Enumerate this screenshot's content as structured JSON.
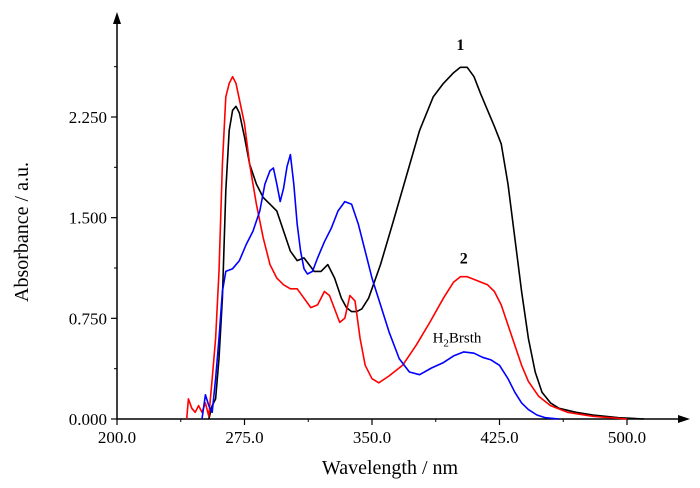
{
  "chart_data": {
    "type": "line",
    "xlabel": "Wavelength / nm",
    "ylabel": "Absorbance / a.u.",
    "xlim": [
      200,
      545
    ],
    "ylim": [
      0,
      3.05
    ],
    "x_ticks": [
      200,
      275,
      350,
      425,
      500
    ],
    "x_tick_labels": [
      "200.0",
      "275.0",
      "350.0",
      "425.0",
      "500.0"
    ],
    "y_ticks": [
      0,
      0.75,
      1.5,
      2.25
    ],
    "y_tick_labels": [
      "0.000",
      "0.750",
      "1.500",
      "2.250"
    ],
    "grid": false,
    "series": [
      {
        "name": "1",
        "color": "#000000",
        "points": [
          [
            254,
            0.0
          ],
          [
            256,
            0.1
          ],
          [
            258,
            0.15
          ],
          [
            260,
            0.45
          ],
          [
            262,
            0.9
          ],
          [
            264,
            1.7
          ],
          [
            266,
            2.15
          ],
          [
            268,
            2.3
          ],
          [
            270,
            2.33
          ],
          [
            272,
            2.28
          ],
          [
            275,
            2.1
          ],
          [
            278,
            1.9
          ],
          [
            282,
            1.75
          ],
          [
            286,
            1.65
          ],
          [
            290,
            1.6
          ],
          [
            294,
            1.55
          ],
          [
            298,
            1.4
          ],
          [
            302,
            1.25
          ],
          [
            306,
            1.18
          ],
          [
            310,
            1.2
          ],
          [
            313,
            1.15
          ],
          [
            316,
            1.1
          ],
          [
            320,
            1.1
          ],
          [
            324,
            1.15
          ],
          [
            328,
            1.05
          ],
          [
            332,
            0.9
          ],
          [
            335,
            0.83
          ],
          [
            338,
            0.8
          ],
          [
            341,
            0.8
          ],
          [
            344,
            0.82
          ],
          [
            348,
            0.9
          ],
          [
            355,
            1.15
          ],
          [
            362,
            1.45
          ],
          [
            370,
            1.8
          ],
          [
            378,
            2.15
          ],
          [
            386,
            2.4
          ],
          [
            392,
            2.5
          ],
          [
            398,
            2.58
          ],
          [
            402,
            2.62
          ],
          [
            406,
            2.62
          ],
          [
            410,
            2.55
          ],
          [
            414,
            2.42
          ],
          [
            418,
            2.3
          ],
          [
            422,
            2.18
          ],
          [
            426,
            2.05
          ],
          [
            430,
            1.75
          ],
          [
            434,
            1.35
          ],
          [
            438,
            0.95
          ],
          [
            442,
            0.6
          ],
          [
            446,
            0.35
          ],
          [
            450,
            0.2
          ],
          [
            455,
            0.12
          ],
          [
            460,
            0.08
          ],
          [
            470,
            0.05
          ],
          [
            480,
            0.03
          ],
          [
            495,
            0.01
          ],
          [
            510,
            0.0
          ]
        ]
      },
      {
        "name": "2",
        "color": "#ff0000",
        "points": [
          [
            241,
            0.0
          ],
          [
            242,
            0.15
          ],
          [
            244,
            0.08
          ],
          [
            246,
            0.05
          ],
          [
            248,
            0.1
          ],
          [
            250,
            0.05
          ],
          [
            252,
            0.12
          ],
          [
            254,
            0.02
          ],
          [
            256,
            0.3
          ],
          [
            258,
            0.6
          ],
          [
            260,
            1.1
          ],
          [
            262,
            1.9
          ],
          [
            264,
            2.4
          ],
          [
            266,
            2.5
          ],
          [
            268,
            2.55
          ],
          [
            270,
            2.5
          ],
          [
            272,
            2.38
          ],
          [
            275,
            2.2
          ],
          [
            278,
            1.9
          ],
          [
            282,
            1.6
          ],
          [
            286,
            1.35
          ],
          [
            290,
            1.15
          ],
          [
            294,
            1.05
          ],
          [
            298,
            1.0
          ],
          [
            302,
            0.97
          ],
          [
            306,
            0.97
          ],
          [
            310,
            0.9
          ],
          [
            314,
            0.83
          ],
          [
            318,
            0.85
          ],
          [
            322,
            0.95
          ],
          [
            325,
            0.92
          ],
          [
            328,
            0.82
          ],
          [
            331,
            0.72
          ],
          [
            334,
            0.75
          ],
          [
            337,
            0.92
          ],
          [
            340,
            0.88
          ],
          [
            343,
            0.6
          ],
          [
            346,
            0.4
          ],
          [
            350,
            0.3
          ],
          [
            354,
            0.27
          ],
          [
            360,
            0.32
          ],
          [
            368,
            0.4
          ],
          [
            376,
            0.55
          ],
          [
            384,
            0.72
          ],
          [
            392,
            0.9
          ],
          [
            398,
            1.02
          ],
          [
            402,
            1.06
          ],
          [
            406,
            1.06
          ],
          [
            410,
            1.04
          ],
          [
            414,
            1.02
          ],
          [
            418,
            1.0
          ],
          [
            422,
            0.95
          ],
          [
            426,
            0.85
          ],
          [
            430,
            0.7
          ],
          [
            434,
            0.55
          ],
          [
            438,
            0.4
          ],
          [
            442,
            0.28
          ],
          [
            448,
            0.17
          ],
          [
            455,
            0.1
          ],
          [
            465,
            0.05
          ],
          [
            480,
            0.02
          ],
          [
            500,
            0.0
          ]
        ]
      },
      {
        "name": "H2Brsth",
        "color": "#0000ff",
        "points": [
          [
            250,
            0.0
          ],
          [
            252,
            0.18
          ],
          [
            254,
            0.1
          ],
          [
            256,
            0.05
          ],
          [
            258,
            0.3
          ],
          [
            260,
            0.6
          ],
          [
            262,
            0.95
          ],
          [
            264,
            1.1
          ],
          [
            268,
            1.12
          ],
          [
            272,
            1.18
          ],
          [
            276,
            1.3
          ],
          [
            280,
            1.4
          ],
          [
            284,
            1.55
          ],
          [
            287,
            1.75
          ],
          [
            290,
            1.85
          ],
          [
            292,
            1.87
          ],
          [
            294,
            1.75
          ],
          [
            296,
            1.62
          ],
          [
            298,
            1.72
          ],
          [
            300,
            1.88
          ],
          [
            302,
            1.97
          ],
          [
            304,
            1.75
          ],
          [
            306,
            1.45
          ],
          [
            308,
            1.25
          ],
          [
            310,
            1.12
          ],
          [
            312,
            1.08
          ],
          [
            315,
            1.1
          ],
          [
            318,
            1.2
          ],
          [
            322,
            1.32
          ],
          [
            326,
            1.42
          ],
          [
            330,
            1.55
          ],
          [
            334,
            1.62
          ],
          [
            338,
            1.6
          ],
          [
            342,
            1.45
          ],
          [
            346,
            1.25
          ],
          [
            350,
            1.05
          ],
          [
            355,
            0.85
          ],
          [
            360,
            0.65
          ],
          [
            366,
            0.45
          ],
          [
            372,
            0.35
          ],
          [
            378,
            0.33
          ],
          [
            385,
            0.38
          ],
          [
            392,
            0.42
          ],
          [
            398,
            0.47
          ],
          [
            404,
            0.5
          ],
          [
            410,
            0.49
          ],
          [
            415,
            0.46
          ],
          [
            420,
            0.44
          ],
          [
            425,
            0.4
          ],
          [
            430,
            0.3
          ],
          [
            434,
            0.2
          ],
          [
            438,
            0.12
          ],
          [
            442,
            0.07
          ],
          [
            447,
            0.03
          ],
          [
            452,
            0.01
          ],
          [
            460,
            0.0
          ]
        ]
      }
    ],
    "annotations": [
      {
        "series": "1",
        "text": "1",
        "at": [
          402,
          2.75
        ]
      },
      {
        "series": "2",
        "text": "2",
        "at": [
          404,
          1.16
        ]
      },
      {
        "series": "H2Brsth",
        "text_main": "H",
        "text_sub": "2",
        "text_rest": "Brsth",
        "at": [
          400,
          0.57
        ]
      }
    ]
  }
}
